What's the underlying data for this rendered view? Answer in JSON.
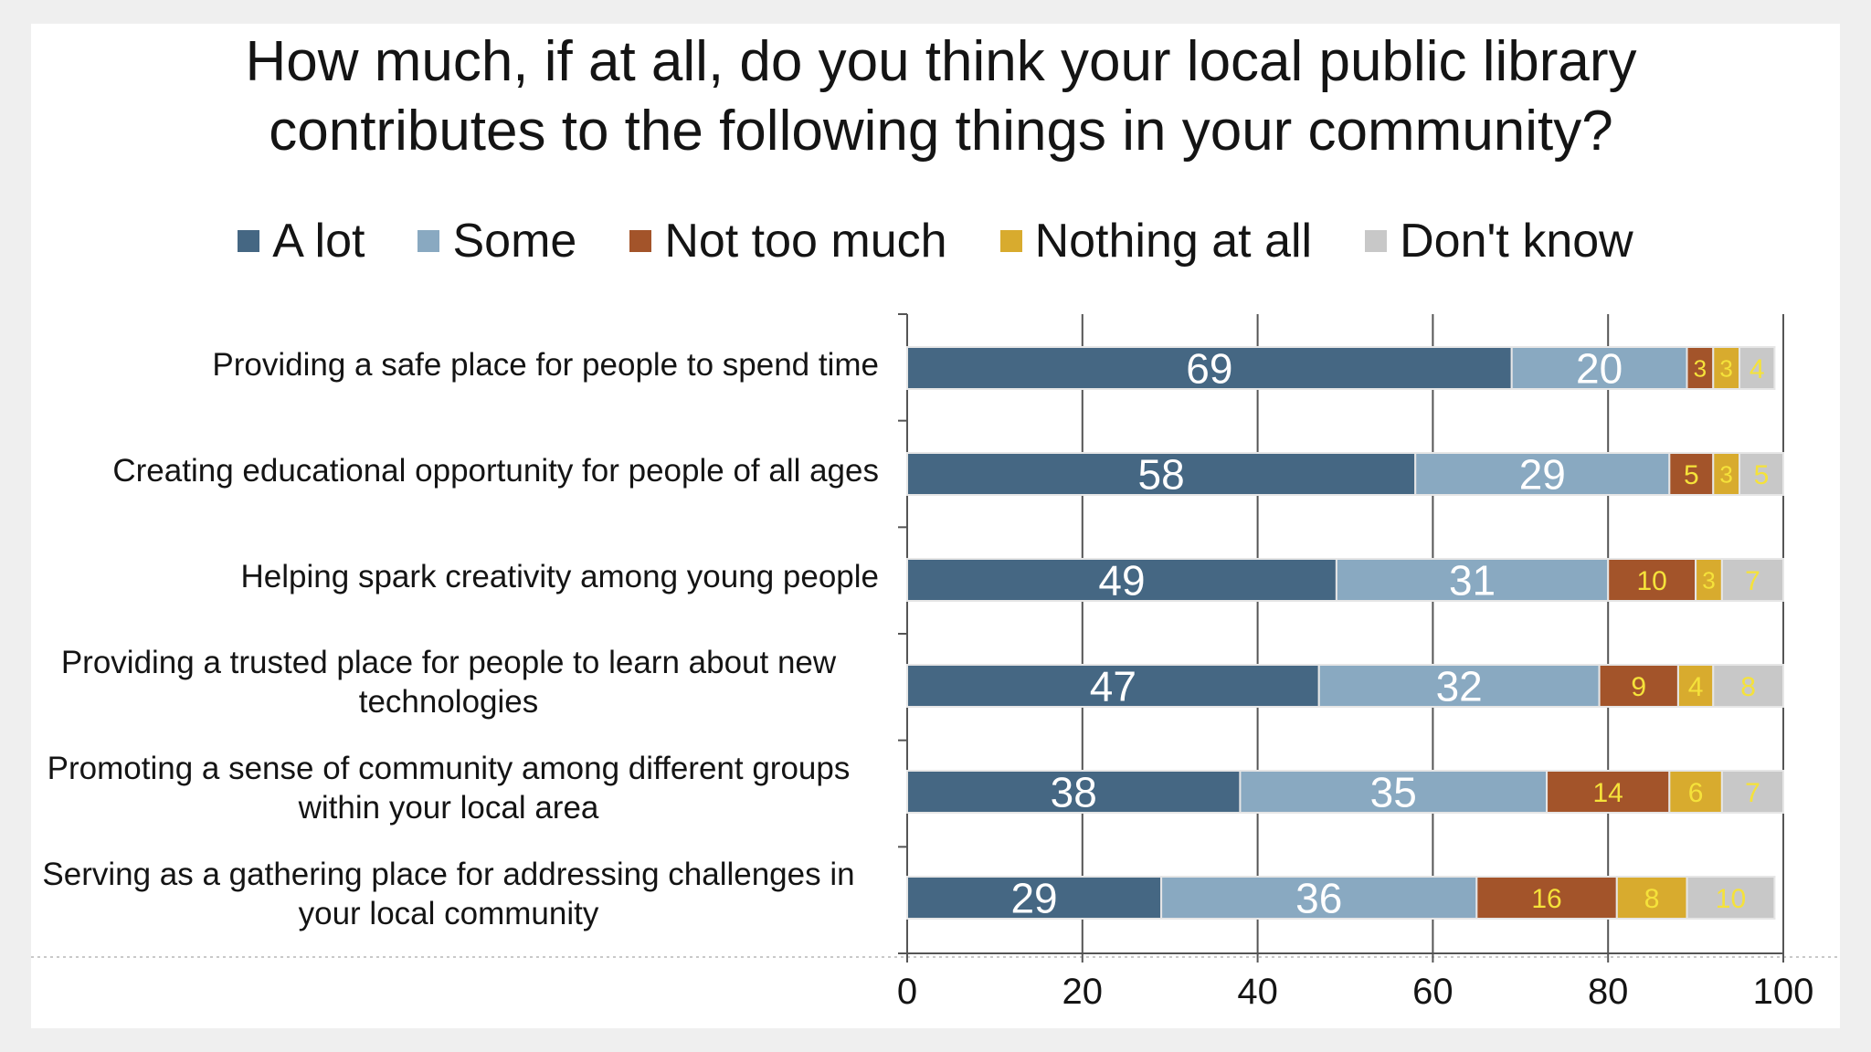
{
  "chart_data": {
    "type": "bar",
    "orientation": "horizontal-stacked",
    "title": "How much, if at all, do you think your local public library contributes to the following things in your community?",
    "categories": [
      "Providing a safe place for people to spend time",
      "Creating educational opportunity for people of all ages",
      "Helping spark creativity among young people",
      "Providing a trusted place for people to learn about new technologies",
      "Promoting a sense of community among different groups within your local area",
      "Serving as a gathering place for addressing challenges in your local community"
    ],
    "series": [
      {
        "name": "A lot",
        "color": "#456783",
        "label_color": "#ffffff",
        "values": [
          69,
          58,
          49,
          47,
          38,
          29
        ]
      },
      {
        "name": "Some",
        "color": "#89a9c1",
        "label_color": "#ffffff",
        "values": [
          20,
          29,
          31,
          32,
          35,
          36
        ]
      },
      {
        "name": "Not too much",
        "color": "#a3542a",
        "label_color": "#f5e23a",
        "values": [
          3,
          5,
          10,
          9,
          14,
          16
        ]
      },
      {
        "name": "Nothing at all",
        "color": "#d8ab2e",
        "label_color": "#f5e23a",
        "values": [
          3,
          3,
          3,
          4,
          6,
          8
        ]
      },
      {
        "name": "Don't know",
        "color": "#c8c8c8",
        "label_color": "#f5e23a",
        "values": [
          4,
          5,
          7,
          8,
          7,
          10
        ]
      }
    ],
    "xlim": [
      0,
      100
    ],
    "xticks": [
      0,
      20,
      40,
      60,
      80,
      100
    ],
    "grid": true,
    "legend": "top-center"
  }
}
